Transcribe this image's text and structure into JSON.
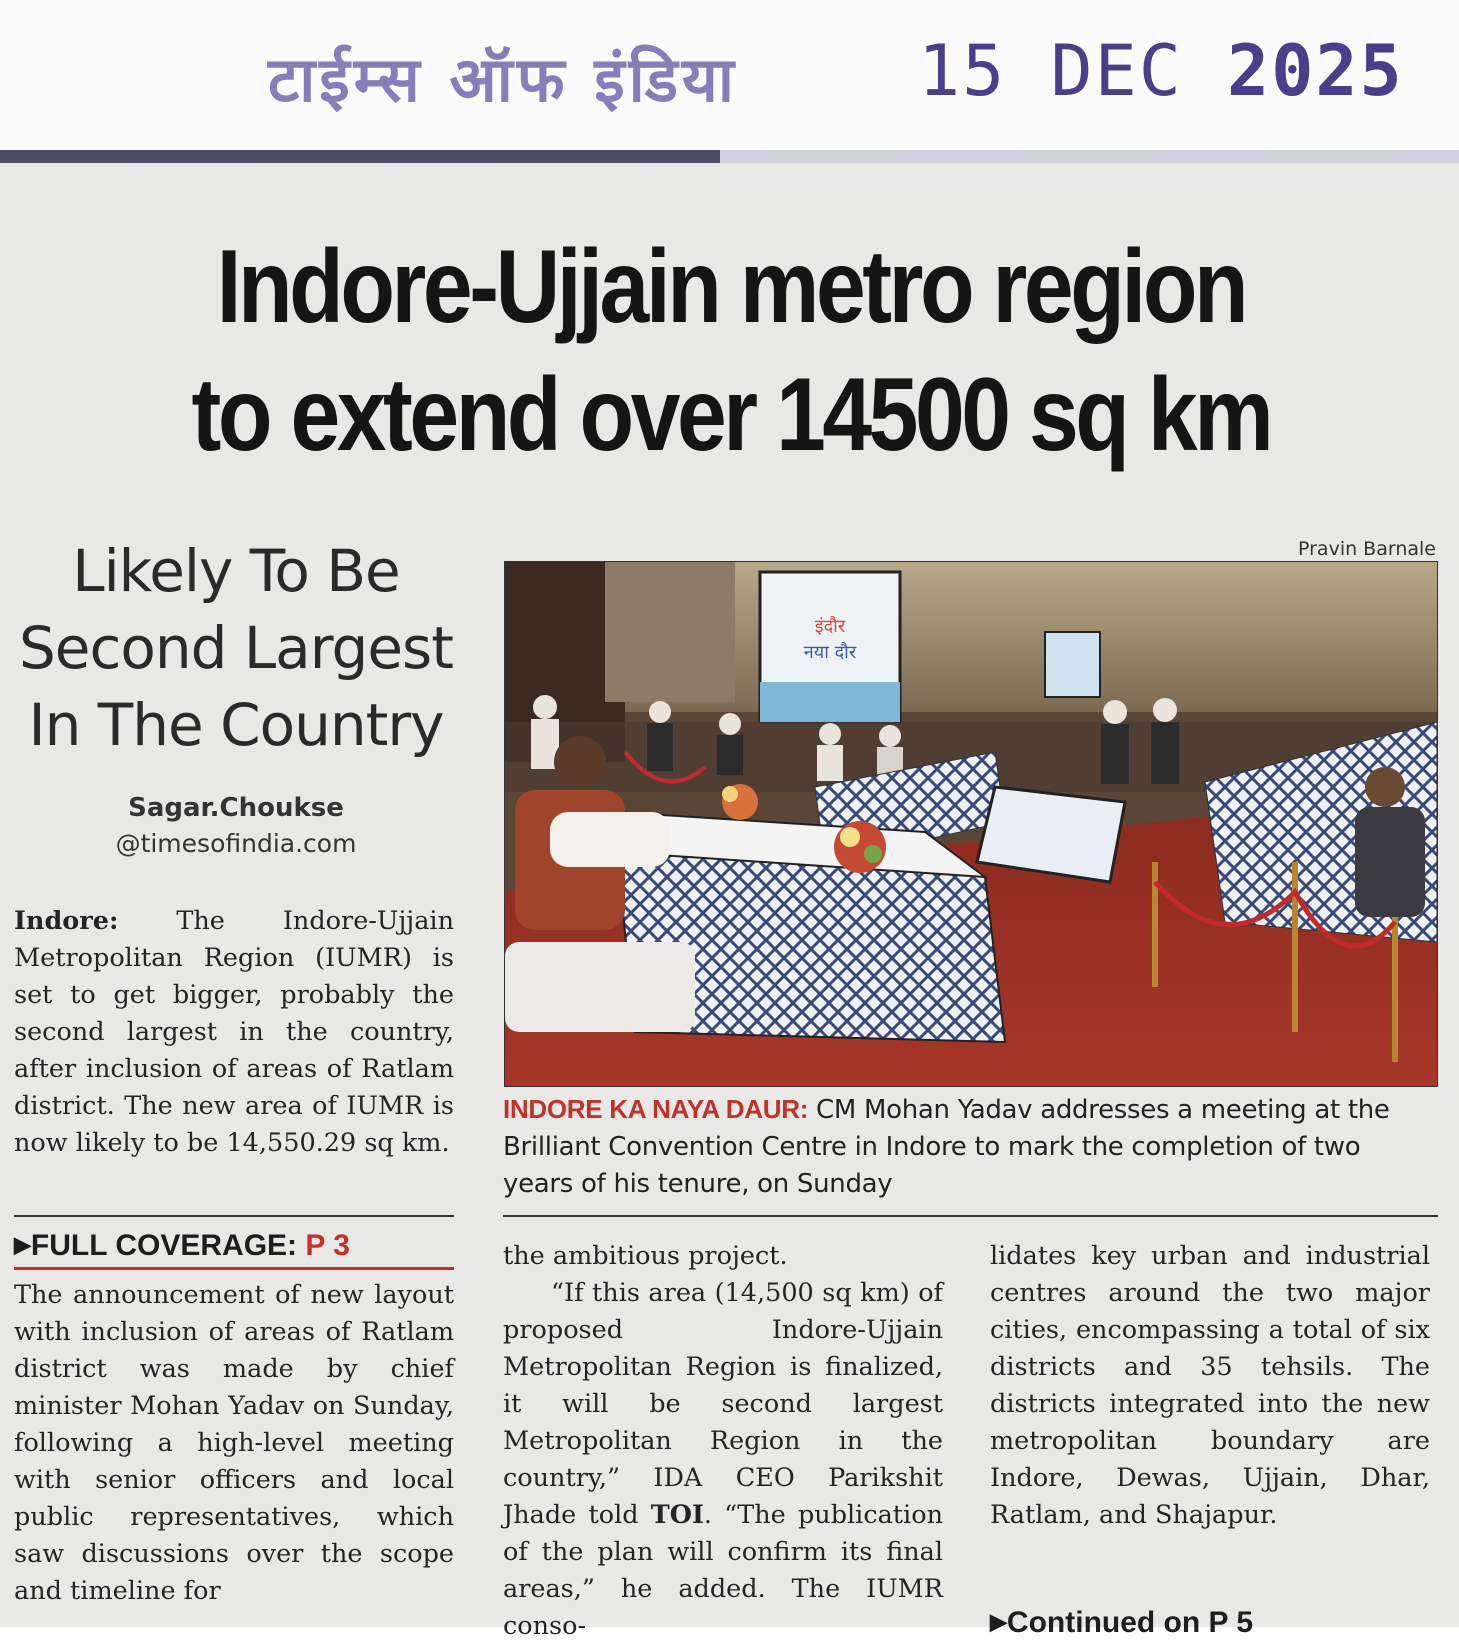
{
  "stamp": {
    "hindi": "टाईम्स ऑफ इंडिया",
    "day": "15",
    "month": "DEC",
    "year": "2025"
  },
  "article": {
    "headline_line1": "Indore-Ujjain metro region",
    "headline_line2": "to extend over 14500 sq km",
    "subhead_line1": "Likely To Be",
    "subhead_line2": "Second Largest",
    "subhead_line3": "In The Country",
    "byline_name": "Sagar.Choukse",
    "byline_email": "@timesofindia.com",
    "dateline": "Indore:",
    "lead": "The Indore-Ujjain Metropolitan Region (IUMR) is set to get bigger, probably the second largest in the country, after inclusion of areas of Ratlam district. The new area of IUMR is now likely to be 14,550.29 sq km.",
    "full_coverage_label": "FULL COVERAGE:",
    "full_coverage_page": "P 3",
    "col1": "The announcement of new layout with inclusion of areas of Ratlam district was made by chief minister Mohan Yadav on Sunday, following a high-level meeting with senior officers and local public representatives, which saw discussions over the scope and timeline for",
    "col2_p1": "the ambitious project.",
    "col2_p2a": "“If this area (14,500 sq km) of proposed Indore-Ujjain Metropolitan Region is finalized, it will be second largest Metropolitan Region in the country,” IDA CEO Parikshit Jhade told ",
    "col2_p2_toi": "TOI",
    "col2_p2b": ". “The publication of the plan will confirm its final areas,” he added. The IUMR conso-",
    "col3": "lidates key urban and industrial centres around the two major cities, encompassing a total of six districts and 35 tehsils. The districts integrated into the new metropolitan boundary are Indore, Dewas, Ujjain, Dhar, Ratlam, and Shajapur.",
    "continued": "Continued on P 5"
  },
  "photo": {
    "credit": "Pravin Barnale",
    "banner_text_1": "इंदौर",
    "banner_text_2": "नया दौर",
    "caption_label": "INDORE KA NAYA DAUR:",
    "caption_text": " CM Mohan Yadav addresses a meeting at the Brilliant Convention Centre in Indore to mark the completion of two years of his tenure, on Sunday"
  },
  "colors": {
    "accent_red": "#c2322a",
    "stamp_ink": "#4a3f8a",
    "paper": "#e8e8e6"
  }
}
